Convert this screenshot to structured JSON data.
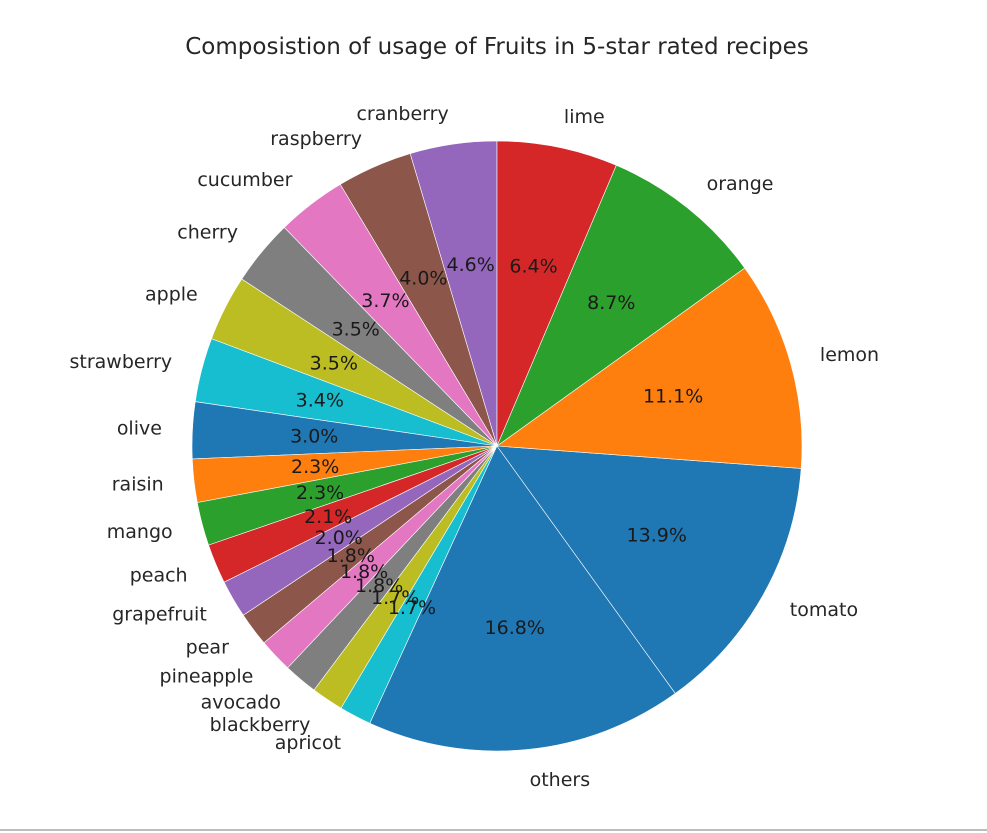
{
  "chart_data": {
    "type": "pie",
    "title": "Composistion of usage of Fruits in 5-star rated recipes",
    "start_angle_deg": 90,
    "direction": "counterclockwise",
    "slices": [
      {
        "label": "cranberry",
        "pct_label": "4.6%",
        "value": 4.6,
        "color": "#9467bd"
      },
      {
        "label": "raspberry",
        "pct_label": "4.0%",
        "value": 4.0,
        "color": "#8c564b"
      },
      {
        "label": "cucumber",
        "pct_label": "3.7%",
        "value": 3.7,
        "color": "#e377c2"
      },
      {
        "label": "cherry",
        "pct_label": "3.5%",
        "value": 3.5,
        "color": "#7f7f7f"
      },
      {
        "label": "apple",
        "pct_label": "3.5%",
        "value": 3.5,
        "color": "#bcbd22"
      },
      {
        "label": "strawberry",
        "pct_label": "3.4%",
        "value": 3.4,
        "color": "#17becf"
      },
      {
        "label": "olive",
        "pct_label": "3.0%",
        "value": 3.0,
        "color": "#1f77b4"
      },
      {
        "label": "raisin",
        "pct_label": "2.3%",
        "value": 2.3,
        "color": "#ff7f0e"
      },
      {
        "label": "mango",
        "pct_label": "2.3%",
        "value": 2.3,
        "color": "#2ca02c"
      },
      {
        "label": "peach",
        "pct_label": "2.1%",
        "value": 2.1,
        "color": "#d62728"
      },
      {
        "label": "grapefruit",
        "pct_label": "2.0%",
        "value": 2.0,
        "color": "#9467bd"
      },
      {
        "label": "pear",
        "pct_label": "1.8%",
        "value": 1.8,
        "color": "#8c564b"
      },
      {
        "label": "pineapple",
        "pct_label": "1.8%",
        "value": 1.8,
        "color": "#e377c2"
      },
      {
        "label": "avocado",
        "pct_label": "1.8%",
        "value": 1.8,
        "color": "#7f7f7f"
      },
      {
        "label": "blackberry",
        "pct_label": "1.7%",
        "value": 1.7,
        "color": "#bcbd22"
      },
      {
        "label": "apricot",
        "pct_label": "1.7%",
        "value": 1.7,
        "color": "#17becf"
      },
      {
        "label": "others",
        "pct_label": "16.8%",
        "value": 16.8,
        "color": "#1f77b4"
      },
      {
        "label": "tomato",
        "pct_label": "13.9%",
        "value": 13.9,
        "color": "#1f77b4"
      },
      {
        "label": "lemon",
        "pct_label": "11.1%",
        "value": 11.1,
        "color": "#ff7f0e"
      },
      {
        "label": "orange",
        "pct_label": "8.7%",
        "value": 8.7,
        "color": "#2ca02c"
      },
      {
        "label": "lime",
        "pct_label": "6.4%",
        "value": 6.4,
        "color": "#d62728"
      }
    ]
  }
}
